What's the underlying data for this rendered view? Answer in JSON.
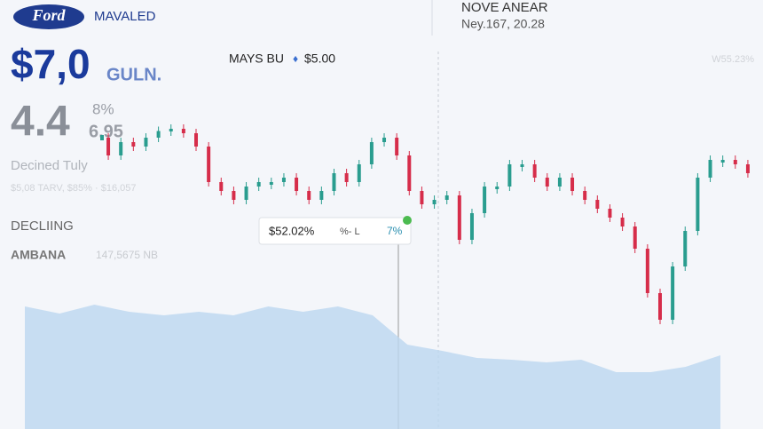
{
  "header": {
    "logo": "Ford",
    "brand": "MAVALED",
    "date_title": "NOVE ANEAR",
    "date": "Ney.167, 20.28"
  },
  "summary": {
    "price": "$7,0",
    "price_unit": "GULN.",
    "change": "4.4",
    "change_pct": "8%",
    "change_sub": "6.95",
    "status": "Decined Tuly",
    "stats": "$5,08 TARV, $85% · $16,057",
    "section": "DECLIING",
    "index_name": "AMBANA",
    "index_value": "147,5675 NB",
    "ticker": "MAYS BU",
    "ticker_price": "$5.00",
    "corner": "W55.23%"
  },
  "tooltip": {
    "value": "$52.02%",
    "mid": "%- L",
    "pct": "7%"
  },
  "chart_data": [
    {
      "type": "candles",
      "up_color": "#2a9d8f",
      "down_color": "#d62d4a",
      "ylim": [
        0,
        100
      ],
      "values": [
        90,
        82,
        88,
        86,
        90,
        93,
        94,
        92,
        86,
        70,
        66,
        62,
        68,
        70,
        70,
        72,
        66,
        62,
        66,
        74,
        70,
        78,
        88,
        90,
        82,
        66,
        60,
        62,
        64,
        44,
        56,
        68,
        68,
        78,
        78,
        72,
        68,
        72,
        66,
        62,
        58,
        54,
        50,
        40,
        20,
        8,
        32,
        48,
        72,
        80,
        80,
        78,
        74
      ]
    },
    {
      "type": "area",
      "color": "#bcd7f0",
      "ylim": [
        0,
        150
      ],
      "values": [
        138,
        130,
        140,
        132,
        128,
        132,
        128,
        138,
        132,
        138,
        128,
        95,
        88,
        80,
        78,
        75,
        78,
        64,
        64,
        70,
        83
      ]
    }
  ]
}
